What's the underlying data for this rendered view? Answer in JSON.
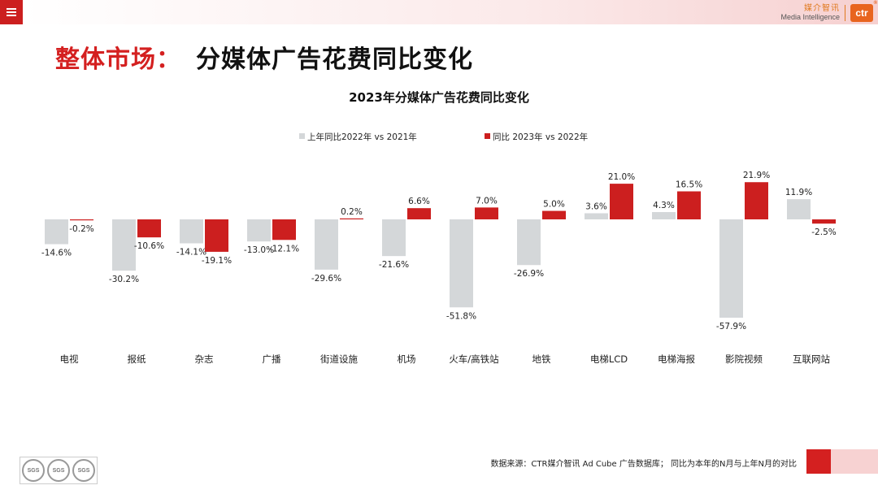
{
  "header": {
    "brand_cn": "媒介智讯",
    "brand_en": "Media Intelligence",
    "brand_logo": "ctr",
    "brand_reg": "®"
  },
  "page": {
    "title_main": "整体市场：",
    "title_sub": "分媒体广告花费同比变化"
  },
  "chart_data": {
    "type": "bar",
    "title": "2023年分媒体广告花费同比变化",
    "categories": [
      "电视",
      "报纸",
      "杂志",
      "广播",
      "街道设施",
      "机场",
      "火车/高铁站",
      "地铁",
      "电梯LCD",
      "电梯海报",
      "影院视频",
      "互联网站"
    ],
    "series": [
      {
        "name": "上年同比2022年 vs 2021年",
        "color": "#d4d7d9",
        "values": [
          -14.6,
          -30.2,
          -14.1,
          -13.0,
          -29.6,
          -21.6,
          -51.8,
          -26.9,
          3.6,
          4.3,
          -57.9,
          11.9
        ]
      },
      {
        "name": "同比 2023年 vs 2022年",
        "color": "#cc1f1f",
        "values": [
          -0.2,
          -10.6,
          -19.1,
          -12.1,
          0.2,
          6.6,
          7.0,
          5.0,
          21.0,
          16.5,
          21.9,
          -2.5
        ]
      }
    ],
    "value_suffix": "%",
    "ylim": [
      -57.9,
      21.9
    ],
    "legend_position": "top-center"
  },
  "footer": {
    "source": "数据来源：CTR媒介智讯 Ad Cube 广告数据库；  同比为本年的N月与上年N月的对比",
    "cert_labels": [
      "SGS",
      "SGS",
      "SGS"
    ]
  },
  "icons": {
    "menu": "hamburger-icon",
    "cert": "certification-badge-icon"
  }
}
